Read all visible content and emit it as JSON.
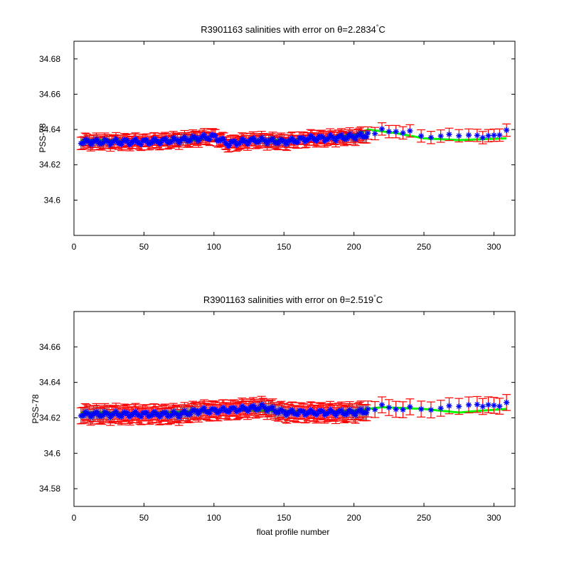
{
  "chart_data": [
    {
      "type": "scatter",
      "title": "R3901163 salinities with error on θ=2.2834°C",
      "title_main": "R3901163 salinities with error on θ=2.2834",
      "title_deg": "°",
      "title_unit": "C",
      "xlabel": "",
      "ylabel": "PSS-78",
      "xlim": [
        0,
        315
      ],
      "ylim": [
        34.58,
        34.69
      ],
      "xticks": [
        0,
        50,
        100,
        150,
        200,
        250,
        300
      ],
      "yticks": [
        34.6,
        34.62,
        34.64,
        34.66,
        34.68
      ],
      "ytick_labels": [
        "34.6",
        "34.62",
        "34.64",
        "34.66",
        "34.68"
      ],
      "grid": false,
      "series": [
        {
          "role": "measured salinity with error bars",
          "color": "#0000ff",
          "errorbar_color": "#ff0000",
          "errorbar_halfwidth": 0.0035,
          "x": [
            5,
            25,
            50,
            75,
            100,
            110,
            130,
            150,
            170,
            180,
            200,
            210,
            220,
            225,
            230,
            240,
            250,
            275,
            290,
            295,
            309
          ],
          "y": [
            34.633,
            34.633,
            34.633,
            34.634,
            34.636,
            34.632,
            34.634,
            34.633,
            34.635,
            34.635,
            34.636,
            34.637,
            34.641,
            34.638,
            34.639,
            34.638,
            34.636,
            34.636,
            34.636,
            34.636,
            34.638
          ]
        },
        {
          "role": "mapped salinity",
          "color": "#00ff00",
          "x": [
            5,
            50,
            100,
            150,
            200,
            210,
            230,
            250,
            275,
            309
          ],
          "y": [
            34.634,
            34.634,
            34.634,
            34.634,
            34.637,
            34.64,
            34.638,
            34.635,
            34.634,
            34.635
          ]
        }
      ]
    },
    {
      "type": "scatter",
      "title": "R3901163 salinities with error on θ=2.519°C",
      "title_main": "R3901163 salinities with error on θ=2.519",
      "title_deg": "°",
      "title_unit": "C",
      "xlabel": "float profile number",
      "ylabel": "PSS-78",
      "xlim": [
        0,
        315
      ],
      "ylim": [
        34.57,
        34.68
      ],
      "xticks": [
        0,
        50,
        100,
        150,
        200,
        250,
        300
      ],
      "yticks": [
        34.58,
        34.6,
        34.62,
        34.64,
        34.66
      ],
      "ytick_labels": [
        "34.58",
        "34.6",
        "34.62",
        "34.64",
        "34.66"
      ],
      "grid": false,
      "series": [
        {
          "role": "measured salinity with error bars",
          "color": "#0000ff",
          "errorbar_color": "#ff0000",
          "errorbar_halfwidth": 0.0045,
          "x": [
            5,
            25,
            50,
            75,
            90,
            100,
            120,
            135,
            150,
            175,
            200,
            210,
            220,
            225,
            240,
            260,
            275,
            290,
            300,
            309
          ],
          "y": [
            34.622,
            34.622,
            34.622,
            34.622,
            34.624,
            34.624,
            34.625,
            34.626,
            34.623,
            34.623,
            34.623,
            34.624,
            34.628,
            34.625,
            34.625,
            34.625,
            34.626,
            34.627,
            34.627,
            34.627
          ]
        },
        {
          "role": "mapped salinity",
          "color": "#00ff00",
          "x": [
            5,
            50,
            100,
            150,
            200,
            220,
            250,
            275,
            290,
            309
          ],
          "y": [
            34.623,
            34.623,
            34.624,
            34.624,
            34.624,
            34.626,
            34.625,
            34.623,
            34.624,
            34.625
          ]
        }
      ]
    }
  ]
}
